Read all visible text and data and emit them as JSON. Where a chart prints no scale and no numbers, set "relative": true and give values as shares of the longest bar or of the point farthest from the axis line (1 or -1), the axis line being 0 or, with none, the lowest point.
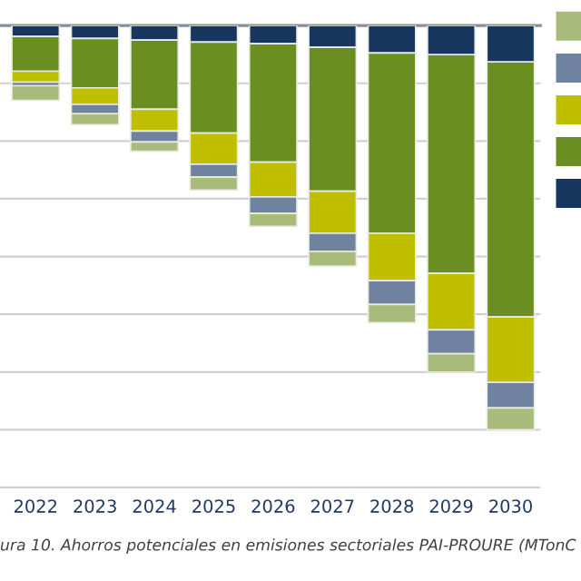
{
  "chart_data": {
    "type": "bar",
    "stacked": true,
    "relative": true,
    "grid": "y",
    "tick_labels": "x",
    "categories": [
      "2022",
      "2023",
      "2024",
      "2025",
      "2026",
      "2027",
      "2028",
      "2029",
      "2030"
    ],
    "series": [
      {
        "color": "#17375e",
        "values": [
          -0.027,
          -0.032,
          -0.036,
          -0.041,
          -0.045,
          -0.054,
          -0.068,
          -0.072,
          -0.09
        ]
      },
      {
        "color": "#6b8e23",
        "values": [
          -0.086,
          -0.122,
          -0.171,
          -0.225,
          -0.293,
          -0.356,
          -0.446,
          -0.541,
          -0.631
        ]
      },
      {
        "color": "#bfbf00",
        "values": [
          -0.027,
          -0.041,
          -0.054,
          -0.077,
          -0.086,
          -0.104,
          -0.117,
          -0.14,
          -0.162
        ]
      },
      {
        "color": "#6f82a0",
        "values": [
          -0.009,
          -0.023,
          -0.027,
          -0.032,
          -0.041,
          -0.045,
          -0.059,
          -0.059,
          -0.063
        ]
      },
      {
        "color": "#a9bb7b",
        "values": [
          -0.036,
          -0.027,
          -0.023,
          -0.032,
          -0.032,
          -0.036,
          -0.045,
          -0.045,
          -0.054
        ]
      }
    ],
    "annotations": [
      "ura 10. Ahorros potenciales en emisiones sectoriales PAI-PROURE (MTonC"
    ]
  }
}
